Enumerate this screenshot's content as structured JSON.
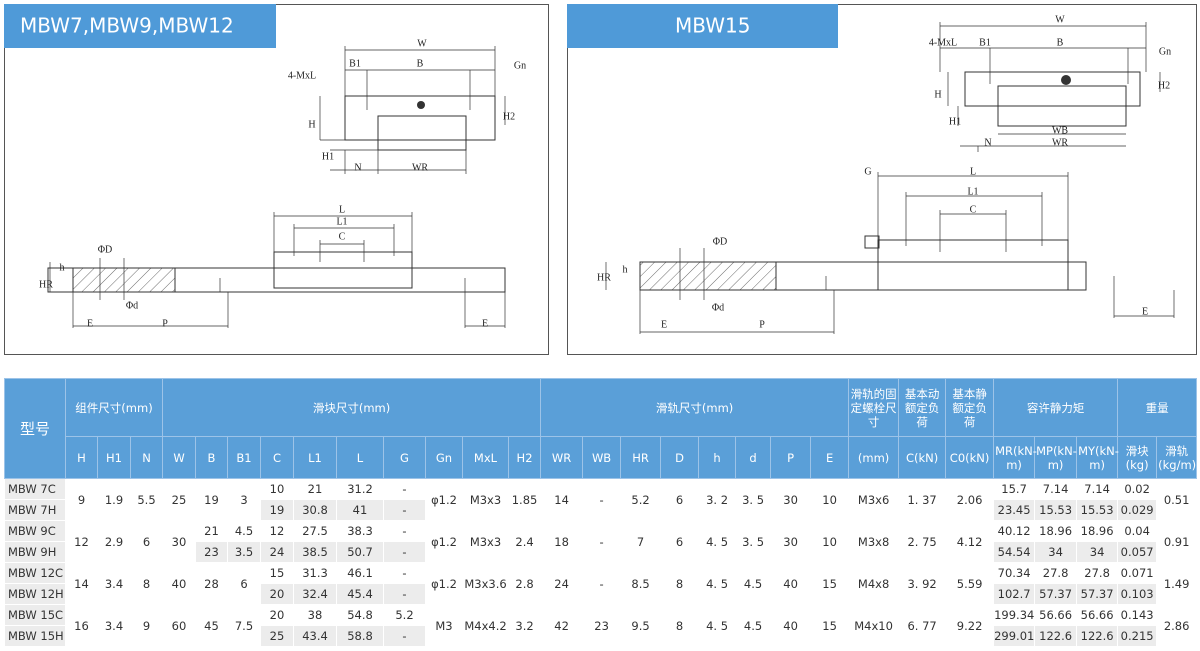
{
  "panels": [
    {
      "title": "MBW7,MBW9,MBW12",
      "labels": [
        "W",
        "B1",
        "B",
        "4-MxL",
        "Gn",
        "H",
        "H2",
        "H1",
        "N",
        "WR",
        "L",
        "L1",
        "C",
        "ΦD",
        "h",
        "HR",
        "Φd",
        "E",
        "P",
        "E"
      ]
    },
    {
      "title": "MBW15",
      "labels": [
        "W",
        "4-MxL",
        "B1",
        "B",
        "Gn",
        "H",
        "H2",
        "H1",
        "WB",
        "N",
        "WR",
        "G",
        "L",
        "L1",
        "C",
        "ΦD",
        "h",
        "HR",
        "Φd",
        "E",
        "P",
        "E"
      ]
    }
  ],
  "table": {
    "header_top": [
      "型号",
      "组件尺寸(mm)",
      "滑块尺寸(mm)",
      "滑轨尺寸(mm)",
      "滑轨的固定螺栓尺寸",
      "基本动额定负荷",
      "基本静额定负荷",
      "容许静力矩",
      "重量"
    ],
    "header_sub": [
      "H",
      "H1",
      "N",
      "W",
      "B",
      "B1",
      "C",
      "L1",
      "L",
      "G",
      "Gn",
      "MxL",
      "H2",
      "WR",
      "WB",
      "HR",
      "D",
      "h",
      "d",
      "P",
      "E",
      "(mm)",
      "C(kN)",
      "C0(kN)",
      "MR(kN-m)",
      "MP(kN-m)",
      "MY(kN-m)",
      "滑块(kg)",
      "滑轨(kg/m)"
    ],
    "rows": [
      {
        "model": "MBW 7C",
        "cells": [
          "9",
          "1.9",
          "5.5",
          "25",
          "19",
          "3",
          "10",
          "21",
          "31.2",
          "-",
          "φ1.2",
          "M3x3",
          "1.85",
          "14",
          "-",
          "5.2",
          "6",
          "3. 2",
          "3. 5",
          "30",
          "10",
          "M3x6",
          "1. 37",
          "2.06",
          "15.7",
          "7.14",
          "7.14",
          "0.02",
          "0.51"
        ]
      },
      {
        "model": "MBW 7H",
        "cells": [
          "19",
          "30.8",
          "41",
          "-",
          "23.45",
          "15.53",
          "15.53",
          "0.029"
        ]
      },
      {
        "model": "MBW 9C",
        "cells": [
          "12",
          "2.9",
          "6",
          "30",
          "21",
          "4.5",
          "12",
          "27.5",
          "38.3",
          "-",
          "φ1.2",
          "M3x3",
          "2.4",
          "18",
          "-",
          "7",
          "6",
          "4. 5",
          "3. 5",
          "30",
          "10",
          "M3x8",
          "2. 75",
          "4.12",
          "40.12",
          "18.96",
          "18.96",
          "0.04",
          "0.91"
        ]
      },
      {
        "model": "MBW 9H",
        "cells": [
          "23",
          "3.5",
          "24",
          "38.5",
          "50.7",
          "-",
          "54.54",
          "34",
          "34",
          "0.057"
        ]
      },
      {
        "model": "MBW 12C",
        "cells": [
          "14",
          "3.4",
          "8",
          "40",
          "28",
          "6",
          "15",
          "31.3",
          "46.1",
          "-",
          "φ1.2",
          "M3x3.6",
          "2.8",
          "24",
          "-",
          "8.5",
          "8",
          "4. 5",
          "4.5",
          "40",
          "15",
          "M4x8",
          "3. 92",
          "5.59",
          "70.34",
          "27.8",
          "27.8",
          "0.071",
          "1.49"
        ]
      },
      {
        "model": "MBW 12H",
        "cells": [
          "20",
          "32.4",
          "45.4",
          "-",
          "102.7",
          "57.37",
          "57.37",
          "0.103"
        ]
      },
      {
        "model": "MBW 15C",
        "cells": [
          "16",
          "3.4",
          "9",
          "60",
          "45",
          "7.5",
          "20",
          "38",
          "54.8",
          "5.2",
          "M3",
          "M4x4.2",
          "3.2",
          "42",
          "23",
          "9.5",
          "8",
          "4. 5",
          "4.5",
          "40",
          "15",
          "M4x10",
          "6. 77",
          "9.22",
          "199.34",
          "56.66",
          "56.66",
          "0.143",
          "2.86"
        ]
      },
      {
        "model": "MBW 15H",
        "cells": [
          "25",
          "43.4",
          "58.8",
          "-",
          "299.01",
          "122.6",
          "122.6",
          "0.215"
        ]
      }
    ]
  }
}
